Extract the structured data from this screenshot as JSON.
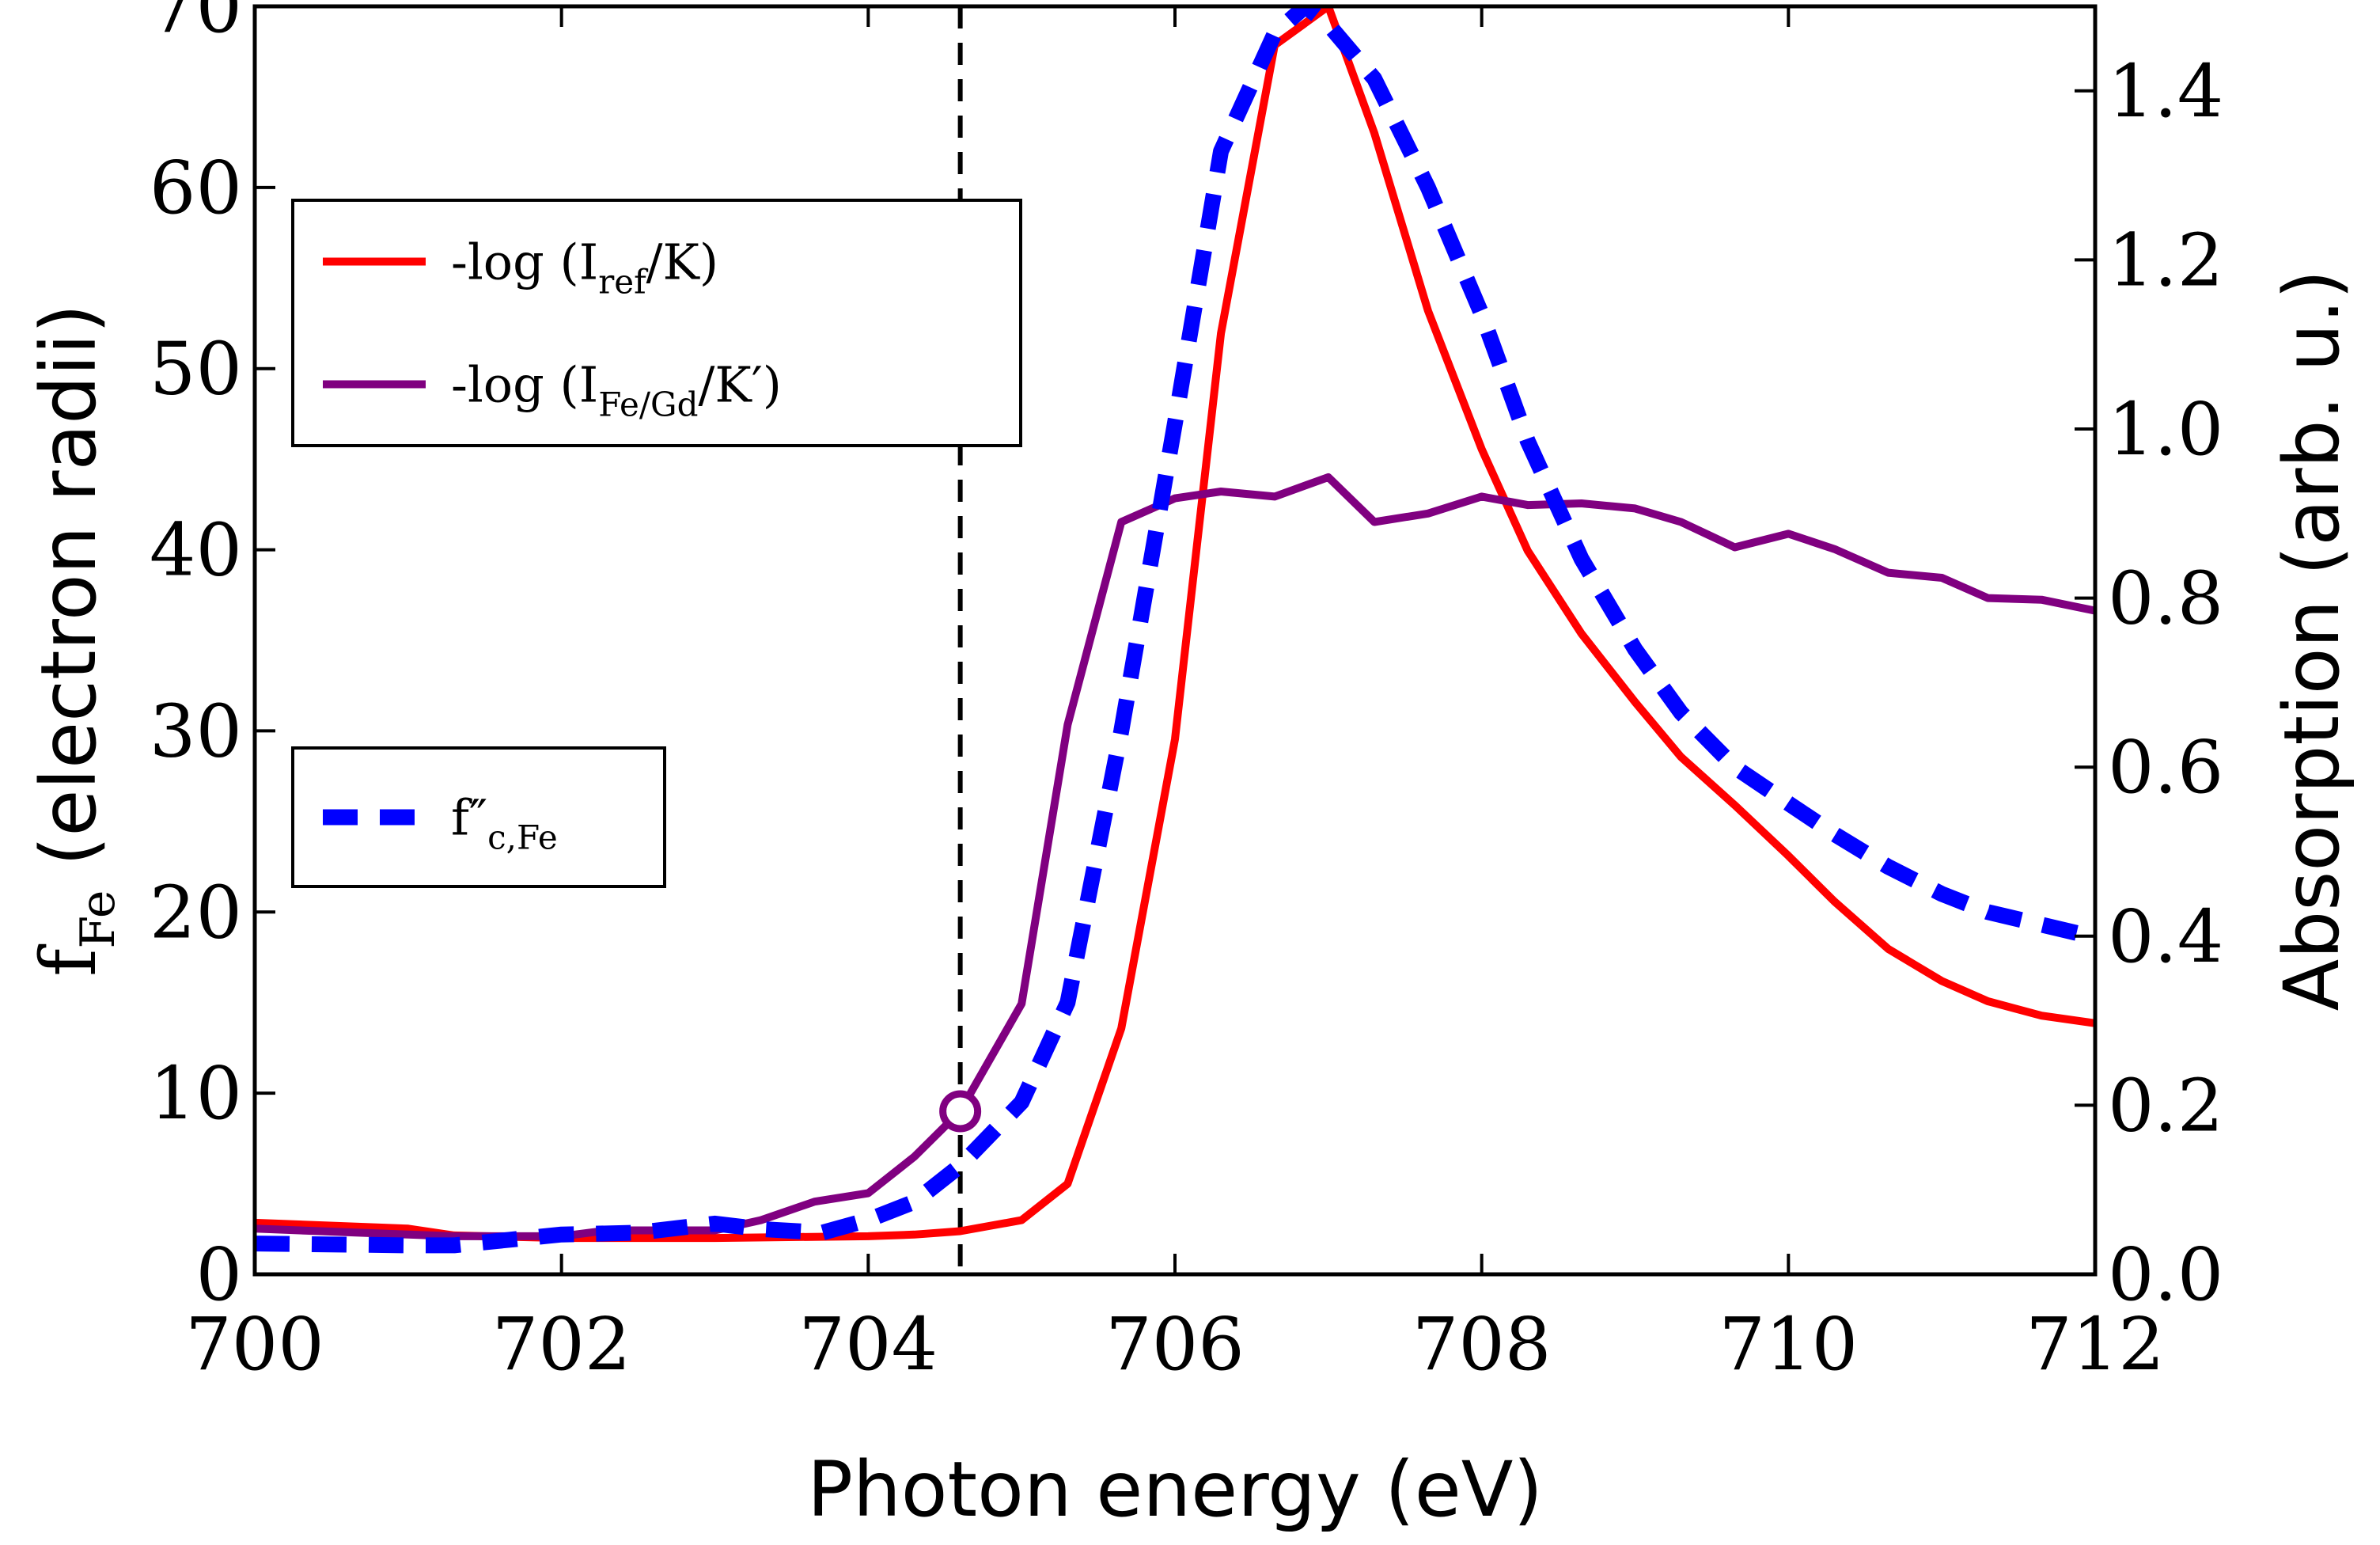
{
  "chart_data": {
    "type": "line",
    "title": "",
    "xlabel": "Photon energy (eV)",
    "ylabel": "f",
    "ylabel_sub": "Fe",
    "ylabel_rest": " (electron radii)",
    "y2label": "Absorption (arb. u.)",
    "xlim": [
      700,
      712
    ],
    "ylim": [
      0,
      70
    ],
    "y2lim": [
      0,
      1.5
    ],
    "x_ticks": [
      700,
      702,
      704,
      706,
      708,
      710,
      712
    ],
    "x_tick_labels": [
      "700",
      "702",
      "704",
      "706",
      "708",
      "710",
      "712"
    ],
    "y_ticks": [
      0,
      10,
      20,
      30,
      40,
      50,
      60,
      70
    ],
    "y_tick_labels": [
      "0",
      "10",
      "20",
      "30",
      "40",
      "50",
      "60",
      "70"
    ],
    "y2_ticks": [
      0,
      0.2,
      0.4,
      0.6,
      0.8,
      1.0,
      1.2,
      1.4
    ],
    "y2_tick_labels": [
      "0.0",
      "0.2",
      "0.4",
      "0.6",
      "0.8",
      "1.0",
      "1.2",
      "1.4"
    ],
    "vline_x": 704.6,
    "marker": {
      "x": 704.6,
      "y": 9.0,
      "series": "purple",
      "label": ""
    },
    "colors": {
      "red": "#ff0000",
      "purple": "#800080",
      "blue": "#0000ff",
      "vline": "#000000"
    },
    "series": [
      {
        "key": "red",
        "name": "-log (I_ref/K)",
        "axis": "right",
        "style": "solid",
        "x": [
          700,
          701,
          701.3,
          702,
          703,
          704,
          704.3,
          704.6,
          705,
          705.3,
          705.65,
          706,
          706.3,
          706.65,
          707,
          707.3,
          707.65,
          708,
          708.3,
          708.65,
          709,
          709.3,
          709.65,
          710,
          710.3,
          710.65,
          711,
          711.3,
          711.65,
          712
        ],
        "values": [
          0.061,
          0.054,
          0.046,
          0.043,
          0.043,
          0.045,
          0.047,
          0.051,
          0.064,
          0.107,
          0.291,
          0.633,
          1.113,
          1.454,
          1.5,
          1.35,
          1.14,
          0.976,
          0.856,
          0.758,
          0.677,
          0.612,
          0.555,
          0.495,
          0.441,
          0.385,
          0.347,
          0.323,
          0.306,
          0.297
        ]
      },
      {
        "key": "purple",
        "name": "-log (I_Fe/Gd/K′)",
        "axis": "right",
        "style": "solid",
        "x": [
          700,
          701,
          701.3,
          702,
          702.3,
          703,
          703.3,
          703.65,
          704,
          704.3,
          704.6,
          705,
          705.3,
          705.65,
          706,
          706.3,
          706.65,
          707,
          707.3,
          707.65,
          708,
          708.3,
          708.65,
          709,
          709.3,
          709.65,
          710,
          710.3,
          710.65,
          711,
          711.3,
          711.65,
          712
        ],
        "values": [
          0.054,
          0.047,
          0.045,
          0.045,
          0.052,
          0.052,
          0.064,
          0.086,
          0.096,
          0.139,
          0.193,
          0.32,
          0.65,
          0.89,
          0.918,
          0.926,
          0.92,
          0.943,
          0.89,
          0.9,
          0.92,
          0.91,
          0.912,
          0.906,
          0.89,
          0.86,
          0.876,
          0.858,
          0.83,
          0.824,
          0.8,
          0.798,
          0.785
        ]
      },
      {
        "key": "blue",
        "name": "f″_c,Fe",
        "axis": "left",
        "style": "dashed",
        "x": [
          700,
          701,
          701.3,
          702,
          702.5,
          703,
          703.3,
          703.7,
          704,
          704.3,
          704.6,
          705,
          705.3,
          705.65,
          706,
          706.3,
          706.65,
          706.85,
          707,
          707.3,
          707.65,
          708,
          708.3,
          708.65,
          709,
          709.3,
          709.65,
          710,
          710.3,
          710.65,
          711,
          711.3,
          711.65,
          712
        ],
        "values": [
          1.7,
          1.6,
          1.6,
          2.2,
          2.3,
          2.8,
          2.5,
          2.3,
          3.0,
          4.0,
          6.0,
          9.5,
          15.0,
          30.0,
          47.0,
          62.0,
          68.5,
          70.0,
          69.0,
          66.0,
          60.0,
          53.0,
          46.0,
          39.5,
          34.5,
          31.0,
          28.0,
          26.0,
          24.3,
          22.5,
          21.0,
          20.0,
          19.3,
          18.6
        ]
      }
    ],
    "legend1": [
      {
        "key": "red",
        "text": "-log (I",
        "sub": "ref",
        "after": "/K)"
      },
      {
        "key": "purple",
        "text": "-log (I",
        "sub": "Fe/Gd",
        "after": "/K′)"
      }
    ],
    "legend2": [
      {
        "key": "blue",
        "text": "f″",
        "sub": "c,Fe",
        "after": ""
      }
    ]
  }
}
